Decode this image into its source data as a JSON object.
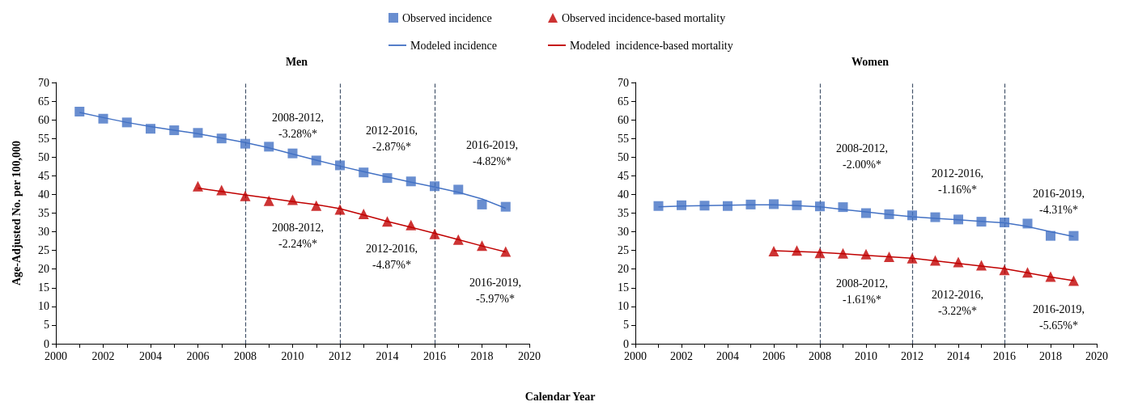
{
  "chart_data": [
    {
      "type": "line",
      "title": "Men",
      "xlabel": "Calendar Year",
      "ylabel": "Age-Adjusted No. per 100,000",
      "x": [
        2001,
        2002,
        2003,
        2004,
        2005,
        2006,
        2007,
        2008,
        2009,
        2010,
        2011,
        2012,
        2013,
        2014,
        2015,
        2016,
        2017,
        2018,
        2019
      ],
      "series": [
        {
          "name": "Observed incidence",
          "type": "scatter",
          "marker": "square",
          "color": "#4472c4",
          "values": [
            62.2,
            60.3,
            59.3,
            57.6,
            57.2,
            56.5,
            55.0,
            53.6,
            52.8,
            51.0,
            49.1,
            47.8,
            45.9,
            44.4,
            43.5,
            42.2,
            41.3,
            37.3,
            36.7
          ]
        },
        {
          "name": "Observed incidence-based mortality",
          "type": "scatter",
          "marker": "triangle",
          "color": "#c00000",
          "values": [
            null,
            null,
            null,
            null,
            null,
            42.2,
            41.2,
            39.6,
            38.3,
            38.6,
            37.0,
            36.0,
            34.8,
            32.8,
            31.8,
            29.4,
            27.9,
            26.3,
            24.7
          ]
        },
        {
          "name": "Modeled incidence",
          "type": "line",
          "marker": "none",
          "color": "#4472c4",
          "values": [
            62.0,
            60.6,
            59.3,
            58.2,
            57.2,
            56.3,
            55.1,
            53.9,
            52.5,
            50.8,
            49.2,
            47.6,
            46.1,
            44.7,
            43.3,
            42.0,
            40.6,
            38.8,
            36.3
          ]
        },
        {
          "name": "Modeled  incidence-based mortality",
          "type": "line",
          "marker": "none",
          "color": "#c00000",
          "values": [
            null,
            null,
            null,
            null,
            null,
            41.7,
            40.8,
            39.9,
            39.0,
            38.1,
            37.3,
            36.2,
            34.5,
            32.8,
            31.2,
            29.6,
            27.9,
            26.2,
            24.6
          ]
        }
      ],
      "xlim": [
        2000,
        2020
      ],
      "xticks": [
        2000,
        {
          "value": 2001,
          "label": null
        },
        2002,
        {
          "value": 2003,
          "label": null
        },
        2004,
        {
          "value": 2005,
          "label": null
        },
        2006,
        {
          "value": 2007,
          "label": null
        },
        2008,
        {
          "value": 2009,
          "label": null
        },
        2010,
        {
          "value": 2011,
          "label": null
        },
        2012,
        {
          "value": 2013,
          "label": null
        },
        2014,
        {
          "value": 2015,
          "label": null
        },
        2016,
        {
          "value": 2017,
          "label": null
        },
        2018,
        {
          "value": 2019,
          "label": null
        },
        2020
      ],
      "ylim": [
        0,
        70
      ],
      "yticks": [
        0,
        5,
        10,
        15,
        20,
        25,
        30,
        35,
        40,
        45,
        50,
        55,
        60,
        65,
        70
      ],
      "ref_lines": [
        {
          "axis": "x",
          "value": 2008,
          "color": "#44546a",
          "line_style": "dashed"
        },
        {
          "axis": "x",
          "value": 2012,
          "color": "#44546a",
          "line_style": "dashed"
        },
        {
          "axis": "x",
          "value": 2016,
          "color": "#44546a",
          "line_style": "dashed"
        }
      ],
      "annotations": [
        "2008-2012,\n-3.28%*",
        "2012-2016,\n-2.87%*",
        "2016-2019,\n-4.82%*",
        "2008-2012,\n-2.24%*",
        "2012-2016,\n-4.87%*",
        "2016-2019,\n-5.97%*"
      ],
      "grid": false,
      "legend": "top"
    },
    {
      "type": "line",
      "title": "Women",
      "x": [
        2001,
        2002,
        2003,
        2004,
        2005,
        2006,
        2007,
        2008,
        2009,
        2010,
        2011,
        2012,
        2013,
        2014,
        2015,
        2016,
        2017,
        2018,
        2019
      ],
      "series": [
        {
          "type": "scatter",
          "marker": "square",
          "color": "#4472c4",
          "values": [
            36.9,
            37.1,
            37.0,
            36.9,
            37.3,
            37.4,
            37.1,
            36.8,
            36.6,
            35.0,
            34.7,
            34.4,
            33.9,
            33.3,
            32.7,
            32.5,
            32.2,
            28.9,
            28.9
          ]
        },
        {
          "type": "scatter",
          "marker": "triangle",
          "color": "#c00000",
          "values": [
            null,
            null,
            null,
            null,
            null,
            24.8,
            25.0,
            24.3,
            24.2,
            24.0,
            23.3,
            22.9,
            22.3,
            21.9,
            21.0,
            19.8,
            19.1,
            18.0,
            16.9
          ]
        },
        {
          "type": "line",
          "marker": "none",
          "color": "#4472c4",
          "values": [
            36.7,
            36.9,
            37.0,
            37.1,
            37.2,
            37.2,
            37.0,
            36.7,
            36.0,
            35.3,
            34.6,
            34.0,
            33.6,
            33.2,
            32.8,
            32.4,
            31.4,
            30.0,
            28.7
          ]
        },
        {
          "type": "line",
          "marker": "none",
          "color": "#c00000",
          "values": [
            null,
            null,
            null,
            null,
            null,
            24.9,
            24.7,
            24.5,
            24.1,
            23.7,
            23.3,
            22.9,
            22.2,
            21.5,
            20.8,
            20.1,
            19.0,
            17.9,
            16.9
          ]
        }
      ],
      "xlim": [
        2000,
        2020
      ],
      "xticks": [
        2000,
        {
          "value": 2001,
          "label": null
        },
        2002,
        {
          "value": 2003,
          "label": null
        },
        2004,
        {
          "value": 2005,
          "label": null
        },
        2006,
        {
          "value": 2007,
          "label": null
        },
        2008,
        {
          "value": 2009,
          "label": null
        },
        2010,
        {
          "value": 2011,
          "label": null
        },
        2012,
        {
          "value": 2013,
          "label": null
        },
        2014,
        {
          "value": 2015,
          "label": null
        },
        2016,
        {
          "value": 2017,
          "label": null
        },
        2018,
        {
          "value": 2019,
          "label": null
        },
        2020
      ],
      "ylim": [
        0,
        70
      ],
      "yticks": [
        0,
        5,
        10,
        15,
        20,
        25,
        30,
        35,
        40,
        45,
        50,
        55,
        60,
        65,
        70
      ],
      "ref_lines": [
        {
          "axis": "x",
          "value": 2008,
          "color": "#44546a",
          "line_style": "dashed"
        },
        {
          "axis": "x",
          "value": 2012,
          "color": "#44546a",
          "line_style": "dashed"
        },
        {
          "axis": "x",
          "value": 2016,
          "color": "#44546a",
          "line_style": "dashed"
        }
      ],
      "annotations": [
        "2008-2012,\n-2.00%*",
        "2012-2016,\n-1.16%*",
        "2016-2019,\n-4.31%*",
        "2008-2012,\n-1.61%*",
        "2012-2016,\n-3.22%*",
        "2016-2019,\n-5.65%*"
      ],
      "grid": false,
      "legend": false
    }
  ]
}
